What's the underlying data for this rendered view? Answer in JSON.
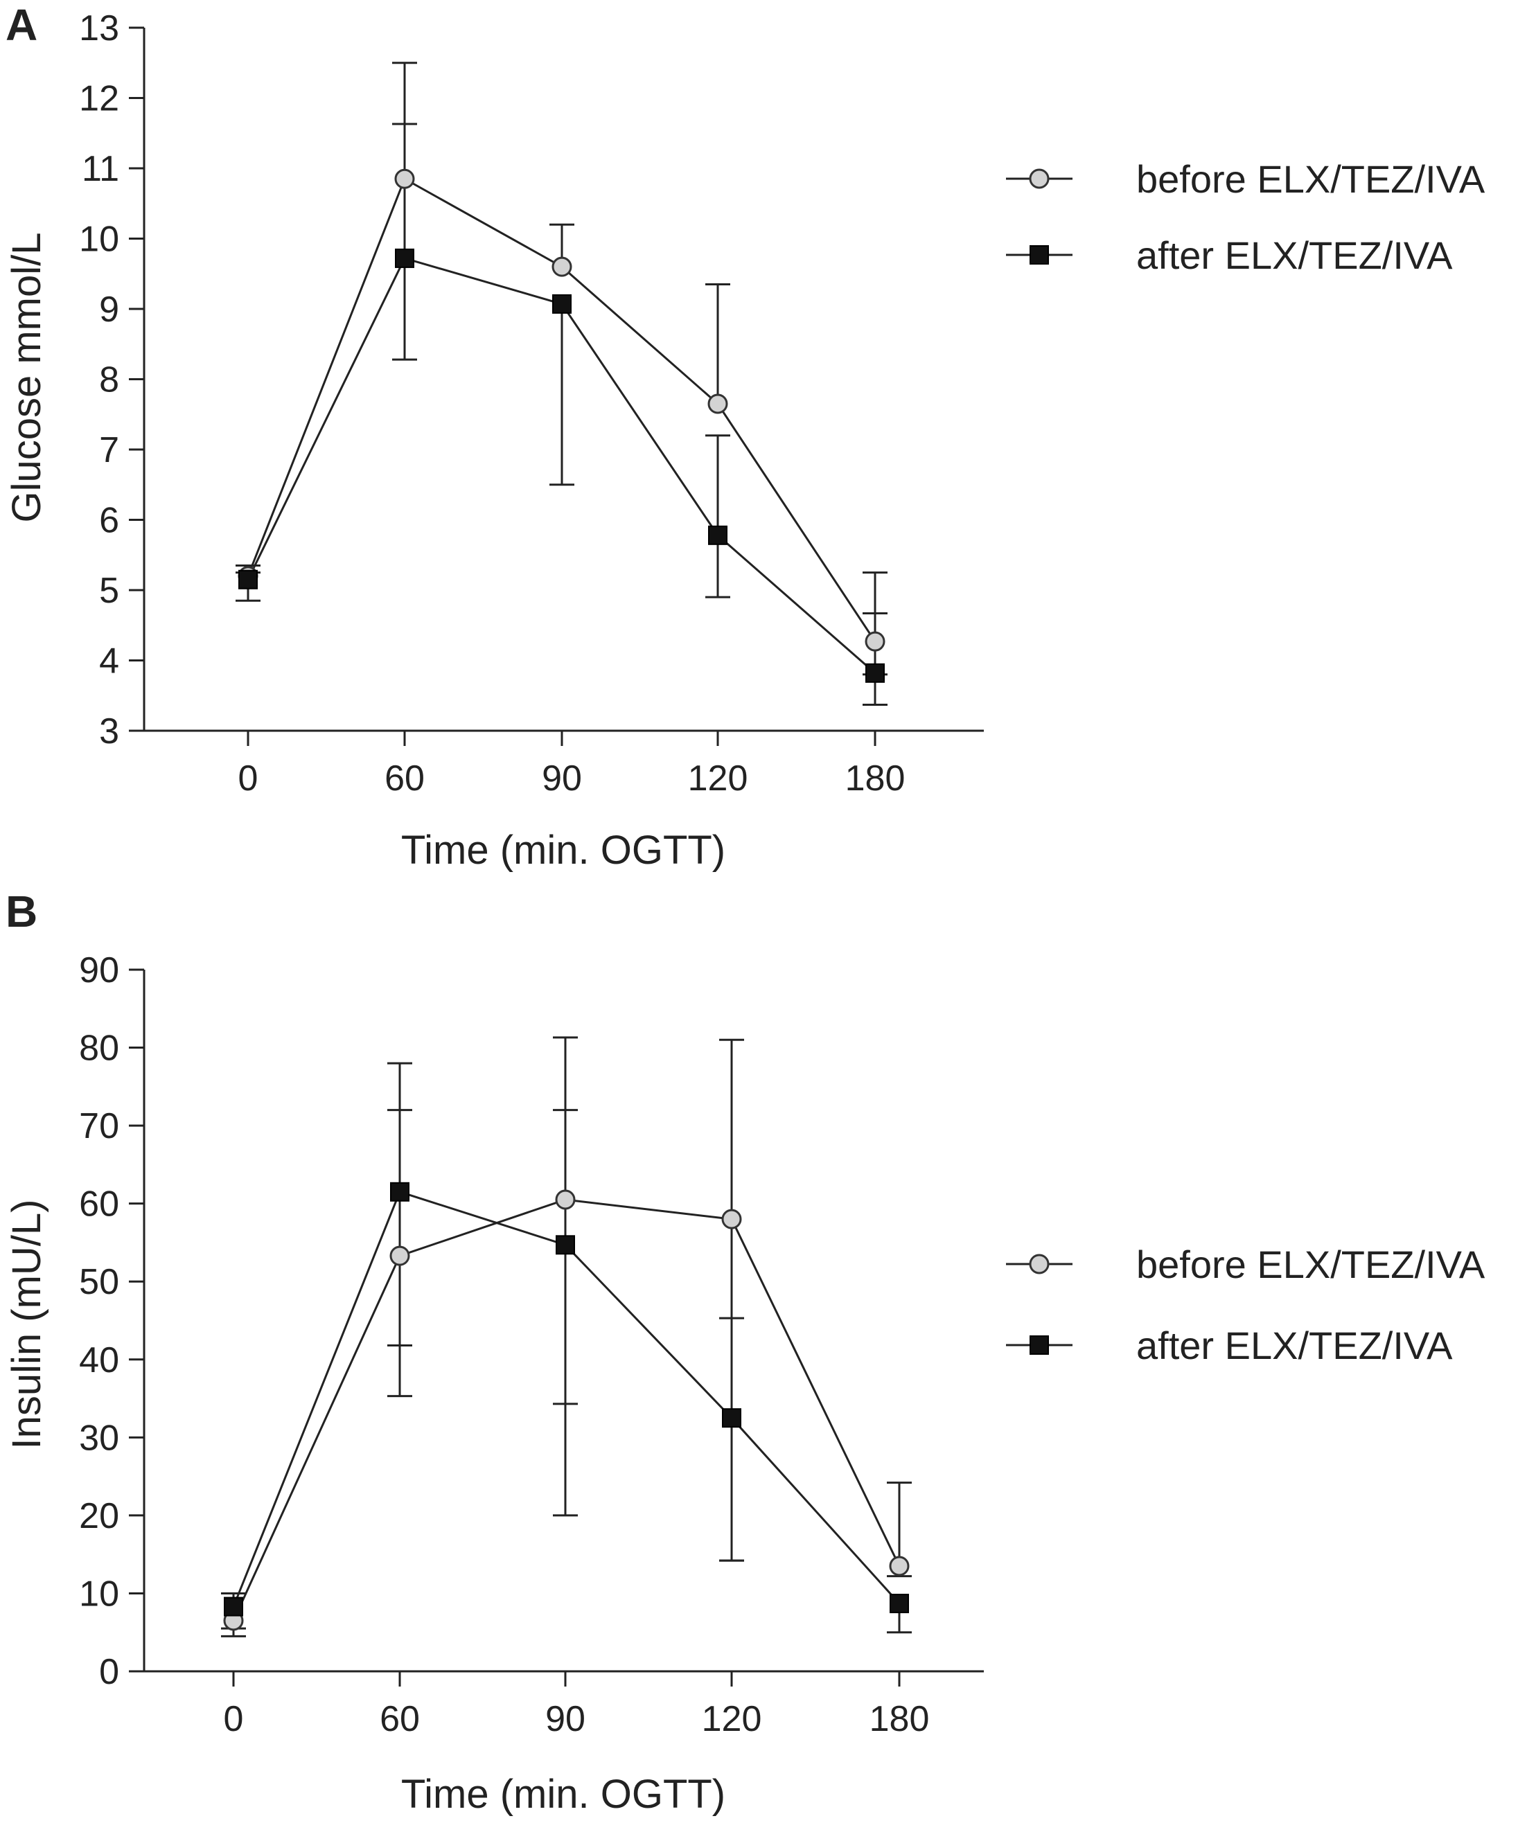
{
  "figure": {
    "panels": [
      "A",
      "B"
    ]
  },
  "chart_data": [
    {
      "panel": "A",
      "type": "line",
      "title": "",
      "xlabel": "Time (min. OGTT)",
      "ylabel": "Glucose mmol/L",
      "categories": [
        "0",
        "60",
        "90",
        "120",
        "180"
      ],
      "ylim": [
        3,
        13
      ],
      "yticks": [
        "3",
        "4",
        "5",
        "6",
        "7",
        "8",
        "9",
        "10",
        "11",
        "12",
        "13"
      ],
      "legend_position": "right-top",
      "series": [
        {
          "name": "before ELX/TEZ/IVA",
          "marker": "circle",
          "color": "#d3d3d3",
          "values": [
            5.2,
            10.85,
            9.6,
            7.65,
            4.27
          ],
          "err_low": [
            5.2,
            10.85,
            9.6,
            7.65,
            3.8
          ],
          "err_high": [
            5.25,
            12.5,
            10.2,
            9.35,
            5.25
          ]
        },
        {
          "name": "after ELX/TEZ/IVA",
          "marker": "square",
          "color": "#111111",
          "values": [
            5.15,
            9.72,
            9.07,
            5.78,
            3.82
          ],
          "err_low": [
            4.85,
            8.28,
            6.5,
            4.9,
            3.37
          ],
          "err_high": [
            5.35,
            11.63,
            9.07,
            7.2,
            4.67
          ]
        }
      ]
    },
    {
      "panel": "B",
      "type": "line",
      "title": "",
      "xlabel": "Time (min. OGTT)",
      "ylabel": "Insulin (mU/L)",
      "categories": [
        "0",
        "60",
        "90",
        "120",
        "180"
      ],
      "ylim": [
        0,
        90
      ],
      "yticks": [
        "0",
        "10",
        "20",
        "30",
        "40",
        "50",
        "60",
        "70",
        "80",
        "90"
      ],
      "legend_position": "right-middle",
      "series": [
        {
          "name": "before ELX/TEZ/IVA",
          "marker": "circle",
          "color": "#d3d3d3",
          "values": [
            6.5,
            53.3,
            60.5,
            58.0,
            13.5
          ],
          "err_low": [
            4.5,
            35.3,
            20.0,
            14.2,
            12.2
          ],
          "err_high": [
            6.5,
            78.0,
            81.3,
            81.0,
            24.2
          ]
        },
        {
          "name": "after ELX/TEZ/IVA",
          "marker": "square",
          "color": "#111111",
          "values": [
            8.3,
            61.5,
            54.7,
            32.5,
            8.7
          ],
          "err_low": [
            5.5,
            41.8,
            34.3,
            14.2,
            5.0
          ],
          "err_high": [
            10.0,
            72.0,
            72.0,
            45.3,
            8.7
          ]
        }
      ]
    }
  ]
}
